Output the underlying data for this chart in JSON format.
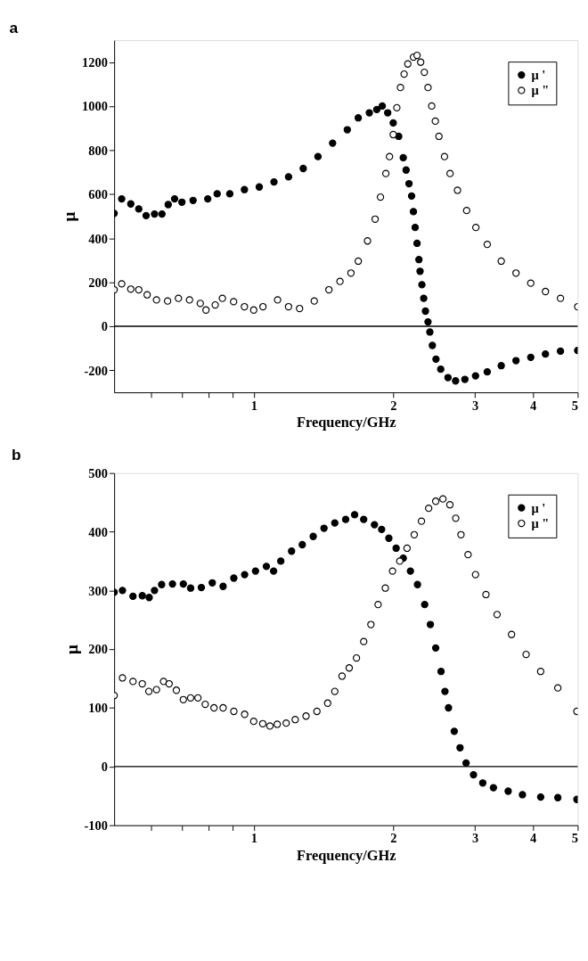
{
  "chart_data": [
    {
      "type": "scatter",
      "title": "a",
      "xlabel": "Frequency/GHz",
      "ylabel": "μ",
      "log": "x",
      "marker": "circle",
      "grid": false,
      "legend": "top right",
      "xlim": [
        0.5,
        5
      ],
      "xticks": [
        {
          "value": 0.6,
          "label": null
        },
        {
          "value": 0.7,
          "label": null
        },
        {
          "value": 0.8,
          "label": null
        },
        {
          "value": 0.9,
          "label": null
        },
        1,
        2,
        3,
        4,
        5
      ],
      "ylim": [
        -300,
        1300
      ],
      "yticks": [
        -200,
        0,
        200,
        400,
        600,
        800,
        1000,
        1200
      ],
      "ref_lines": [
        {
          "axis": "y",
          "value": 0,
          "color": "#000000"
        }
      ],
      "series": [
        {
          "name": "μ '",
          "color": "#000000",
          "x": [
            0.5,
            0.519,
            0.543,
            0.565,
            0.586,
            0.611,
            0.634,
            0.654,
            0.675,
            0.7,
            0.74,
            0.796,
            0.834,
            0.888,
            0.955,
            1.028,
            1.106,
            1.189,
            1.279,
            1.376,
            1.48,
            1.592,
            1.681,
            1.776,
            1.843,
            1.894,
            1.946,
            2.0,
            2.055,
            2.102,
            2.132,
            2.163,
            2.191,
            2.211,
            2.23,
            2.251,
            2.272,
            2.285,
            2.306,
            2.327,
            2.347,
            2.377,
            2.399,
            2.429,
            2.473,
            2.532,
            2.625,
            2.726,
            2.855,
            3.01,
            3.19,
            3.42,
            3.68,
            3.96,
            4.26,
            4.59,
            5.0
          ],
          "values": [
            513,
            579,
            556,
            533,
            503,
            510,
            510,
            553,
            579,
            564,
            572,
            579,
            602,
            602,
            621,
            633,
            656,
            679,
            717,
            771,
            832,
            893,
            947,
            970,
            985,
            1001,
            970,
            924,
            863,
            766,
            710,
            648,
            592,
            521,
            449,
            377,
            303,
            250,
            189,
            127,
            69,
            20,
            -26,
            -87,
            -149,
            -195,
            -233,
            -248,
            -241,
            -225,
            -207,
            -179,
            -156,
            -141,
            -126,
            -113,
            -110
          ]
        },
        {
          "name": "μ \"",
          "color": "#000000",
          "x": [
            0.5,
            0.519,
            0.543,
            0.565,
            0.589,
            0.617,
            0.652,
            0.688,
            0.727,
            0.767,
            0.789,
            0.826,
            0.856,
            0.905,
            0.955,
            1.0,
            1.047,
            1.126,
            1.189,
            1.256,
            1.351,
            1.453,
            1.535,
            1.621,
            1.681,
            1.76,
            1.828,
            1.877,
            1.928,
            1.963,
            2.0,
            2.036,
            2.073,
            2.111,
            2.15,
            2.211,
            2.251,
            2.292,
            2.334,
            2.377,
            2.421,
            2.465,
            2.51,
            2.58,
            2.652,
            2.752,
            2.88,
            3.015,
            3.19,
            3.42,
            3.68,
            3.96,
            4.26,
            4.59,
            5.0
          ],
          "values": [
            166,
            193,
            169,
            166,
            143,
            120,
            115,
            127,
            120,
            104,
            74,
            97,
            127,
            112,
            89,
            74,
            89,
            120,
            89,
            81,
            115,
            166,
            204,
            242,
            296,
            388,
            487,
            587,
            694,
            771,
            871,
            993,
            1085,
            1146,
            1192,
            1223,
            1231,
            1200,
            1154,
            1085,
            1001,
            932,
            863,
            771,
            694,
            618,
            526,
            449,
            372,
            296,
            242,
            196,
            158,
            127,
            89
          ]
        }
      ]
    },
    {
      "type": "scatter",
      "title": "b",
      "xlabel": "Frequency/GHz",
      "ylabel": "μ",
      "log": "x",
      "marker": "circle",
      "grid": false,
      "legend": "top right",
      "xlim": [
        0.5,
        5
      ],
      "xticks": [
        {
          "value": 0.6,
          "label": null
        },
        {
          "value": 0.7,
          "label": null
        },
        {
          "value": 0.8,
          "label": null
        },
        {
          "value": 0.9,
          "label": null
        },
        1,
        2,
        3,
        4,
        5
      ],
      "ylim": [
        -100,
        500
      ],
      "yticks": [
        -100,
        0,
        100,
        200,
        300,
        400,
        500
      ],
      "ref_lines": [
        {
          "axis": "y",
          "value": 0,
          "color": "#000000"
        }
      ],
      "series": [
        {
          "name": "μ '",
          "color": "#000000",
          "x": [
            0.5,
            0.521,
            0.549,
            0.575,
            0.595,
            0.611,
            0.633,
            0.668,
            0.705,
            0.731,
            0.771,
            0.814,
            0.859,
            0.906,
            0.956,
            1.009,
            1.065,
            1.104,
            1.144,
            1.207,
            1.273,
            1.344,
            1.418,
            1.496,
            1.579,
            1.651,
            1.727,
            1.822,
            1.888,
            1.957,
            2.029,
            2.102,
            2.178,
            2.256,
            2.338,
            2.405,
            2.47,
            2.536,
            2.586,
            2.632,
            2.708,
            2.787,
            2.872,
            2.98,
            3.12,
            3.29,
            3.54,
            3.8,
            4.16,
            4.53,
            4.98
          ],
          "values": [
            297,
            300,
            290,
            291,
            288,
            300,
            310,
            311,
            311,
            304,
            305,
            313,
            307,
            321,
            327,
            333,
            341,
            333,
            350,
            367,
            378,
            392,
            406,
            415,
            421,
            429,
            421,
            412,
            404,
            389,
            372,
            355,
            333,
            310,
            276,
            242,
            202,
            162,
            128,
            100,
            60,
            32,
            6,
            -14,
            -28,
            -36,
            -42,
            -48,
            -52,
            -53,
            -56
          ]
        },
        {
          "name": "μ \"",
          "color": "#000000",
          "x": [
            0.5,
            0.521,
            0.549,
            0.575,
            0.594,
            0.617,
            0.639,
            0.657,
            0.681,
            0.705,
            0.731,
            0.758,
            0.786,
            0.821,
            0.859,
            0.906,
            0.956,
            1.0,
            1.046,
            1.084,
            1.124,
            1.175,
            1.229,
            1.297,
            1.369,
            1.444,
            1.496,
            1.551,
            1.607,
            1.666,
            1.727,
            1.79,
            1.855,
            1.923,
            1.993,
            2.066,
            2.142,
            2.22,
            2.301,
            2.385,
            2.47,
            2.56,
            2.65,
            2.728,
            2.8,
            2.9,
            3.01,
            3.17,
            3.35,
            3.6,
            3.87,
            4.16,
            4.53,
            4.98
          ],
          "values": [
            121,
            151,
            145,
            141,
            128,
            131,
            145,
            141,
            130,
            114,
            117,
            117,
            106,
            100,
            100,
            94,
            89,
            77,
            73,
            69,
            72,
            74,
            80,
            86,
            94,
            108,
            128,
            154,
            168,
            185,
            213,
            242,
            276,
            304,
            333,
            350,
            372,
            395,
            418,
            440,
            452,
            456,
            446,
            423,
            395,
            361,
            327,
            293,
            259,
            225,
            191,
            162,
            134,
            94
          ]
        }
      ]
    }
  ]
}
